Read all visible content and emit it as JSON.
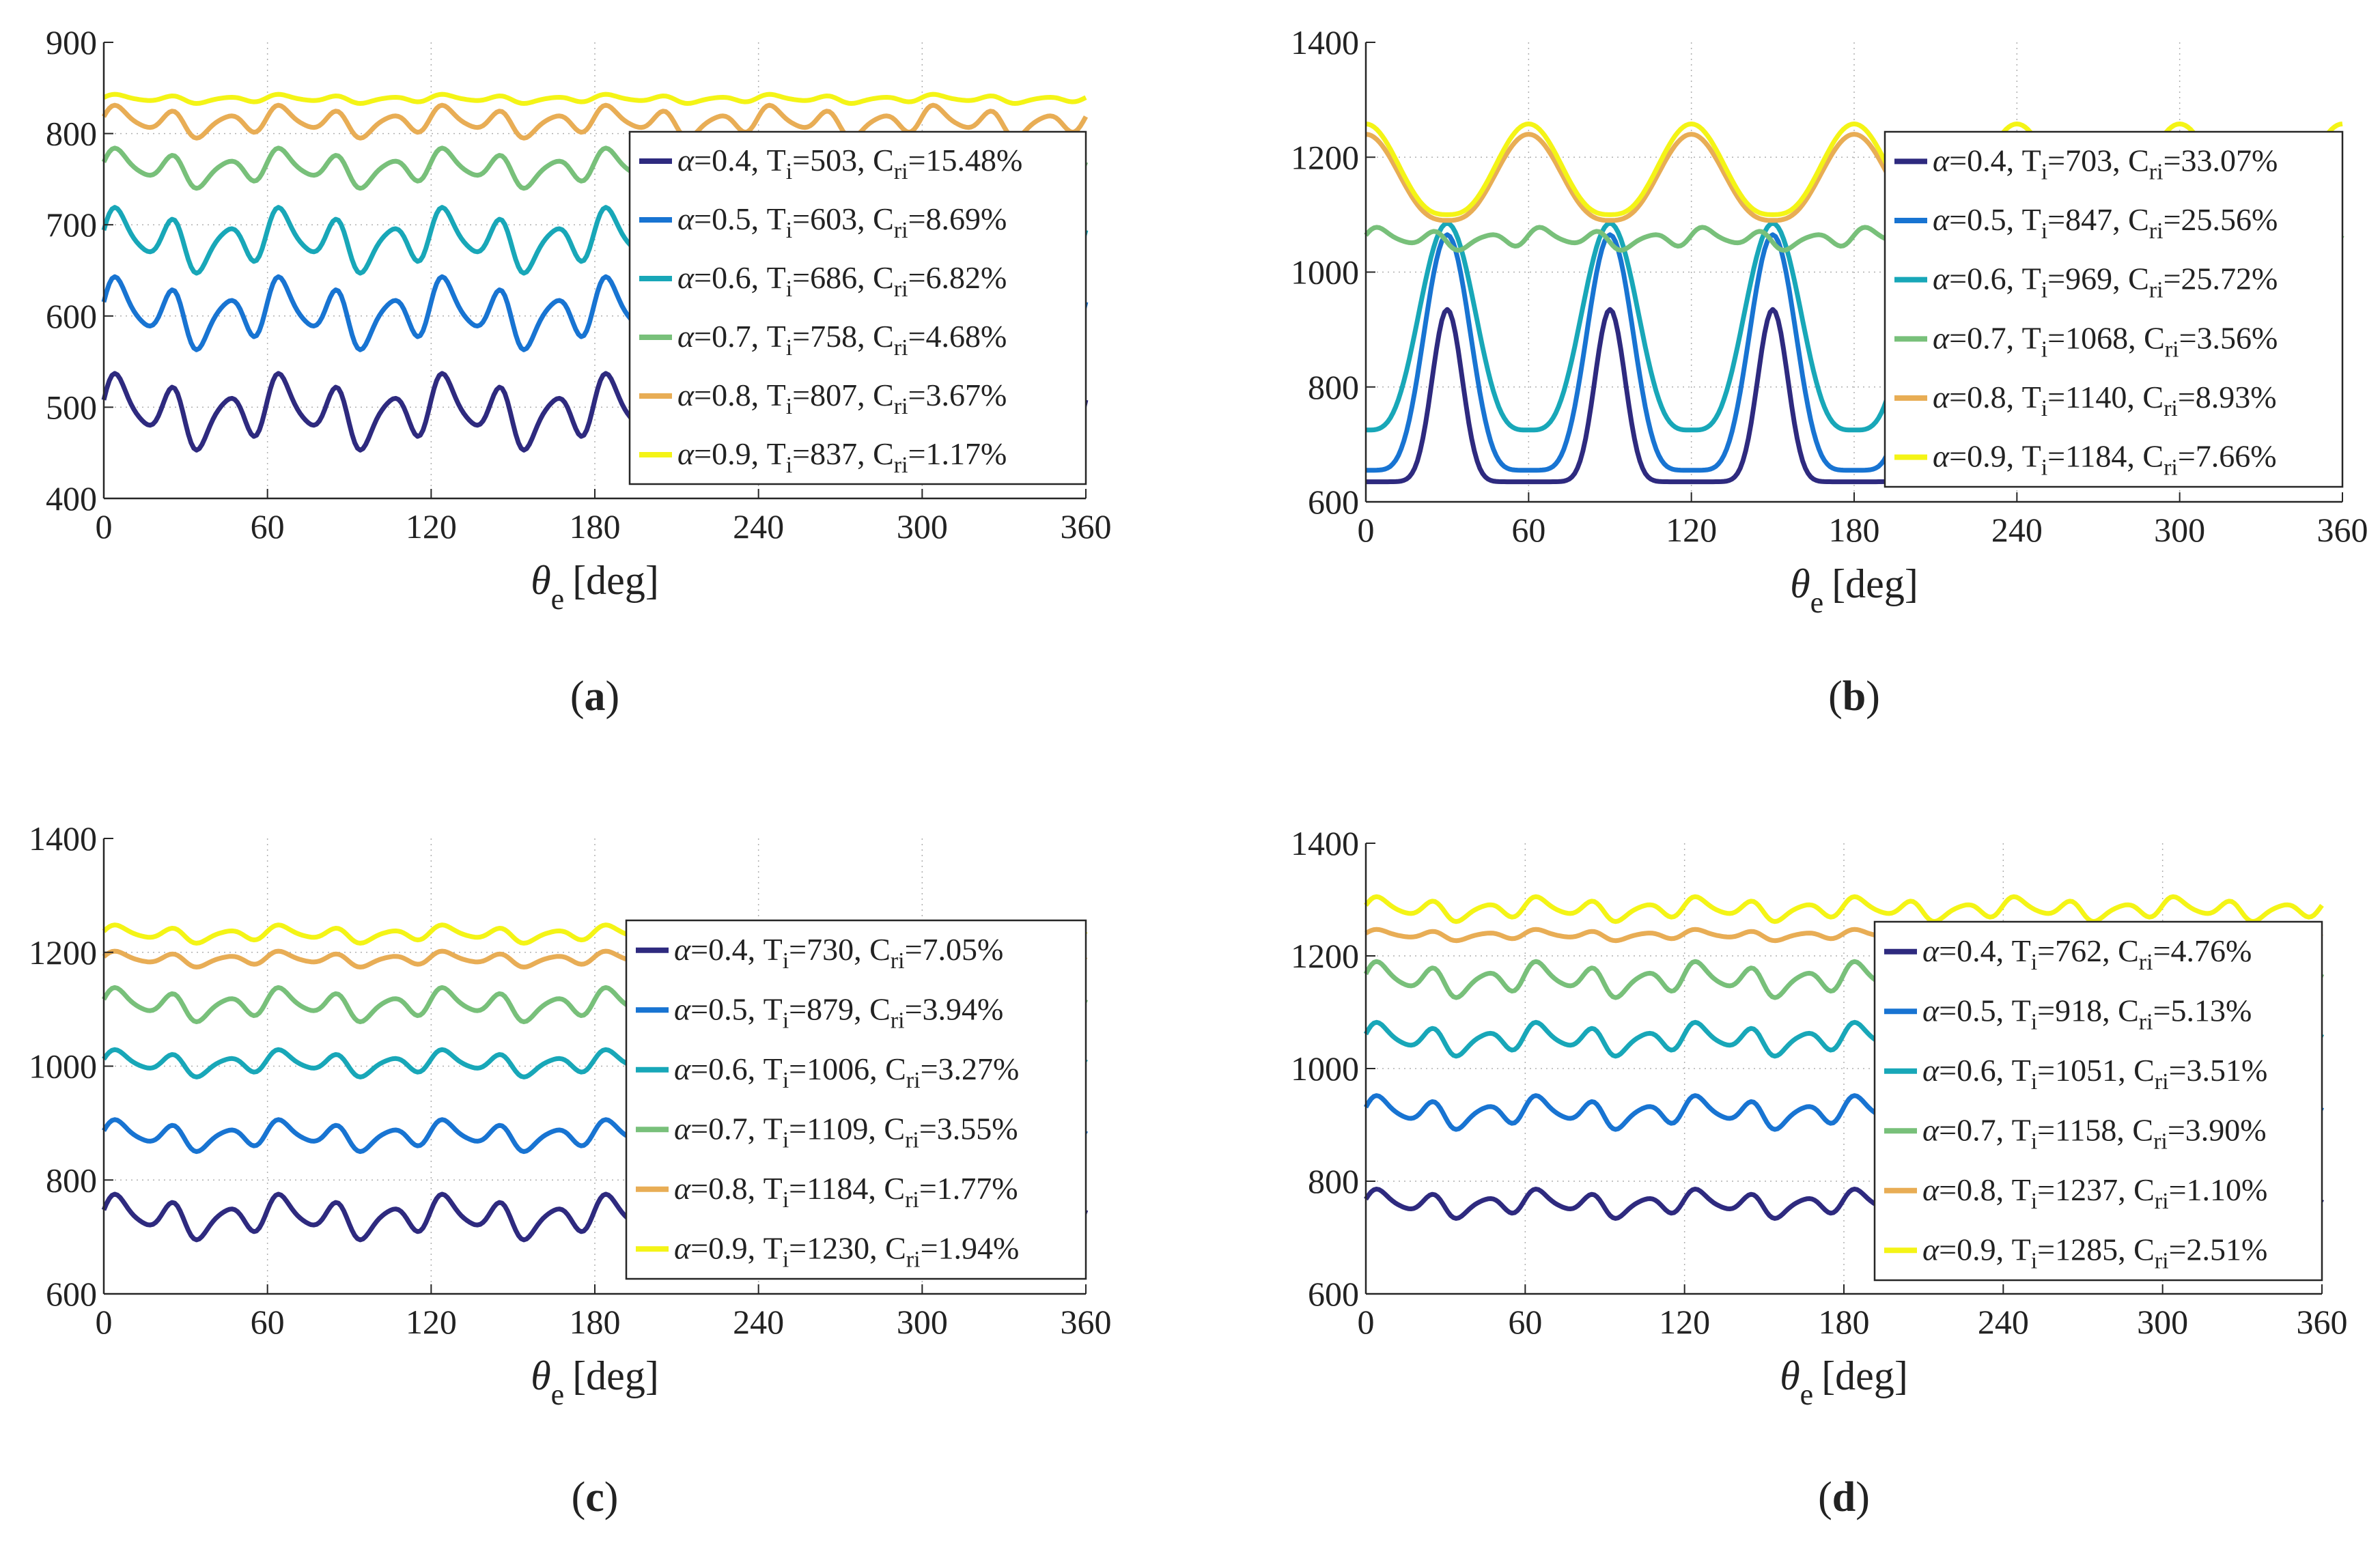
{
  "figure": {
    "panels": [
      {
        "caption": "(a)"
      },
      {
        "caption": "(b)"
      },
      {
        "caption": "(c)"
      },
      {
        "caption": "(d)"
      }
    ]
  },
  "chart_data": [
    {
      "type": "line",
      "caption": "(a)",
      "xlabel_symbol": "θ",
      "xlabel_sub": "e",
      "xlabel_unit": "[deg]",
      "xlim": [
        0,
        360
      ],
      "ylim": [
        400,
        900
      ],
      "xticks": [
        0,
        60,
        120,
        180,
        240,
        300,
        360
      ],
      "yticks": [
        400,
        500,
        600,
        700,
        800,
        900
      ],
      "legend_position": "right",
      "series": [
        {
          "alpha": "0.4",
          "T": "503",
          "C": "15.48%",
          "color": "#2e2a7f",
          "mean": 495,
          "amplitude": 42,
          "shape": "irregular"
        },
        {
          "alpha": "0.5",
          "T": "603",
          "C": "8.69%",
          "color": "#1874d2",
          "mean": 603,
          "amplitude": 40,
          "shape": "irregular"
        },
        {
          "alpha": "0.6",
          "T": "686",
          "C": "6.82%",
          "color": "#18a7b8",
          "mean": 683,
          "amplitude": 36,
          "shape": "irregular"
        },
        {
          "alpha": "0.7",
          "T": "758",
          "C": "4.68%",
          "color": "#78c07a",
          "mean": 762,
          "amplitude": 22,
          "shape": "irregular"
        },
        {
          "alpha": "0.8",
          "T": "807",
          "C": "3.67%",
          "color": "#e8ad55",
          "mean": 813,
          "amplitude": 18,
          "shape": "irregular"
        },
        {
          "alpha": "0.9",
          "T": "837",
          "C": "1.17%",
          "color": "#f4f416",
          "mean": 838,
          "amplitude": 5,
          "shape": "irregular"
        }
      ]
    },
    {
      "type": "line",
      "caption": "(b)",
      "xlabel_symbol": "θ",
      "xlabel_sub": "e",
      "xlabel_unit": "[deg]",
      "xlim": [
        0,
        360
      ],
      "ylim": [
        600,
        1400
      ],
      "xticks": [
        0,
        60,
        120,
        180,
        240,
        300,
        360
      ],
      "yticks": [
        600,
        800,
        1000,
        1200,
        1400
      ],
      "legend_position": "right",
      "series": [
        {
          "alpha": "0.4",
          "T": "703",
          "C": "33.07%",
          "color": "#2e2a7f",
          "min": 635,
          "max": 935,
          "shape": "peak",
          "sharpness": 6
        },
        {
          "alpha": "0.5",
          "T": "847",
          "C": "25.56%",
          "color": "#1874d2",
          "min": 655,
          "max": 1065,
          "shape": "peak",
          "sharpness": 2.6
        },
        {
          "alpha": "0.6",
          "T": "969",
          "C": "25.72%",
          "color": "#18a7b8",
          "min": 725,
          "max": 1085,
          "shape": "peak",
          "sharpness": 1.8
        },
        {
          "alpha": "0.7",
          "T": "1068",
          "C": "3.56%",
          "color": "#78c07a",
          "mean": 1058,
          "amplitude": 20,
          "shape": "irregular"
        },
        {
          "alpha": "0.8",
          "T": "1140",
          "C": "8.93%",
          "color": "#e8ad55",
          "min": 1090,
          "max": 1240,
          "shape": "bump"
        },
        {
          "alpha": "0.9",
          "T": "1184",
          "C": "7.66%",
          "color": "#f4f416",
          "min": 1100,
          "max": 1258,
          "shape": "bump"
        }
      ]
    },
    {
      "type": "line",
      "caption": "(c)",
      "xlabel_symbol": "θ",
      "xlabel_sub": "e",
      "xlabel_unit": "[deg]",
      "xlim": [
        0,
        360
      ],
      "ylim": [
        600,
        1400
      ],
      "xticks": [
        0,
        60,
        120,
        180,
        240,
        300,
        360
      ],
      "yticks": [
        600,
        800,
        1000,
        1200,
        1400
      ],
      "legend_position": "right",
      "series": [
        {
          "alpha": "0.4",
          "T": "730",
          "C": "7.05%",
          "color": "#2e2a7f",
          "mean": 735,
          "amplitude": 40,
          "shape": "irregular"
        },
        {
          "alpha": "0.5",
          "T": "879",
          "C": "3.94%",
          "color": "#1874d2",
          "mean": 878,
          "amplitude": 28,
          "shape": "irregular"
        },
        {
          "alpha": "0.6",
          "T": "1006",
          "C": "3.27%",
          "color": "#18a7b8",
          "mean": 1005,
          "amplitude": 24,
          "shape": "irregular"
        },
        {
          "alpha": "0.7",
          "T": "1109",
          "C": "3.55%",
          "color": "#78c07a",
          "mean": 1108,
          "amplitude": 30,
          "shape": "irregular"
        },
        {
          "alpha": "0.8",
          "T": "1184",
          "C": "1.77%",
          "color": "#e8ad55",
          "mean": 1188,
          "amplitude": 14,
          "shape": "irregular"
        },
        {
          "alpha": "0.9",
          "T": "1230",
          "C": "1.94%",
          "color": "#f4f416",
          "mean": 1232,
          "amplitude": 16,
          "shape": "irregular"
        }
      ]
    },
    {
      "type": "line",
      "caption": "(d)",
      "xlabel_symbol": "θ",
      "xlabel_sub": "e",
      "xlabel_unit": "[deg]",
      "xlim": [
        0,
        360
      ],
      "ylim": [
        600,
        1400
      ],
      "xticks": [
        0,
        60,
        120,
        180,
        240,
        300,
        360
      ],
      "yticks": [
        600,
        800,
        1000,
        1200,
        1400
      ],
      "legend_position": "right",
      "series": [
        {
          "alpha": "0.4",
          "T": "762",
          "C": "4.76%",
          "color": "#2e2a7f",
          "mean": 760,
          "amplitude": 26,
          "shape": "irregular"
        },
        {
          "alpha": "0.5",
          "T": "918",
          "C": "5.13%",
          "color": "#1874d2",
          "mean": 922,
          "amplitude": 30,
          "shape": "irregular"
        },
        {
          "alpha": "0.6",
          "T": "1051",
          "C": "3.51%",
          "color": "#18a7b8",
          "mean": 1052,
          "amplitude": 30,
          "shape": "irregular"
        },
        {
          "alpha": "0.7",
          "T": "1158",
          "C": "3.90%",
          "color": "#78c07a",
          "mean": 1158,
          "amplitude": 32,
          "shape": "irregular"
        },
        {
          "alpha": "0.8",
          "T": "1237",
          "C": "1.10%",
          "color": "#e8ad55",
          "mean": 1237,
          "amplitude": 10,
          "shape": "irregular"
        },
        {
          "alpha": "0.9",
          "T": "1285",
          "C": "2.51%",
          "color": "#f4f416",
          "mean": 1283,
          "amplitude": 22,
          "shape": "irregular"
        }
      ]
    }
  ]
}
